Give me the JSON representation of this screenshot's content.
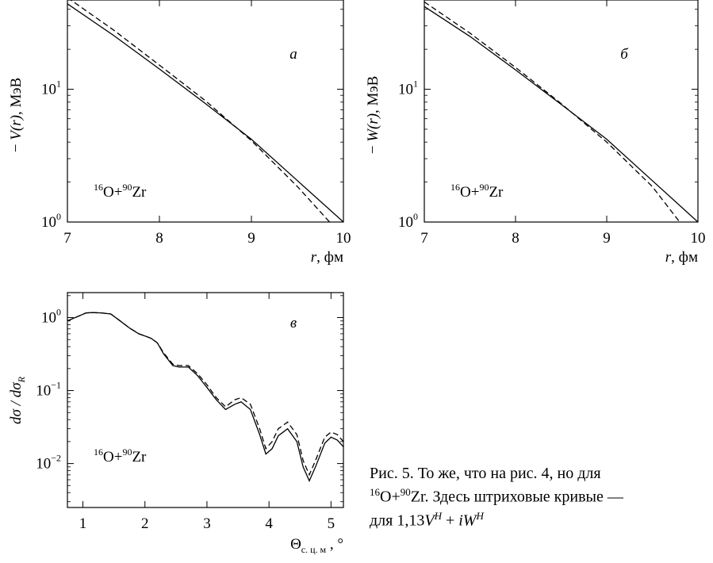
{
  "chart_data": [
    {
      "id": "a",
      "type": "line",
      "panel_label": "а",
      "annotation": {
        "isotope1_mass": "16",
        "isotope1": "O",
        "plus": "+",
        "isotope2_mass": "90",
        "isotope2": "Zr"
      },
      "ylabel": "− V(r), МэВ",
      "ylabel_parts": {
        "minus": "−",
        "symbol": "V",
        "arg": "(r)",
        "unit": ", МэВ"
      },
      "xlabel": "r, фм",
      "xlabel_parts": {
        "symbol": "r",
        "unit": ", фм"
      },
      "scale_y": "log",
      "xlim": [
        7,
        10
      ],
      "ylim": [
        1,
        47
      ],
      "xticks": [
        {
          "v": 7,
          "label": "7"
        },
        {
          "v": 8,
          "label": "8"
        },
        {
          "v": 9,
          "label": "9"
        },
        {
          "v": 10,
          "label": "10"
        }
      ],
      "yticks": [
        {
          "v": 1,
          "base": "10",
          "exp": "0"
        },
        {
          "v": 10,
          "base": "10",
          "exp": "1"
        }
      ],
      "series": [
        {
          "style": "solid",
          "x": [
            7.0,
            7.5,
            8.0,
            8.5,
            9.0,
            9.5,
            10.0
          ],
          "y": [
            44.0,
            25.5,
            14.2,
            7.8,
            4.2,
            2.05,
            1.0
          ]
        },
        {
          "style": "dashed",
          "x": [
            7.0,
            7.5,
            8.0,
            8.5,
            9.0,
            9.5,
            9.85
          ],
          "y": [
            49.0,
            28.0,
            15.2,
            8.2,
            4.1,
            1.85,
            1.0
          ]
        }
      ]
    },
    {
      "id": "b",
      "type": "line",
      "panel_label": "б",
      "annotation": {
        "isotope1_mass": "16",
        "isotope1": "O",
        "plus": "+",
        "isotope2_mass": "90",
        "isotope2": "Zr"
      },
      "ylabel": "− W(r), МэВ",
      "ylabel_parts": {
        "minus": "−",
        "symbol": "W",
        "arg": "(r)",
        "unit": ", МэВ"
      },
      "xlabel": "r, фм",
      "xlabel_parts": {
        "symbol": "r",
        "unit": ", фм"
      },
      "scale_y": "log",
      "xlim": [
        7,
        10
      ],
      "ylim": [
        1,
        47
      ],
      "xticks": [
        {
          "v": 7,
          "label": "7"
        },
        {
          "v": 8,
          "label": "8"
        },
        {
          "v": 9,
          "label": "9"
        },
        {
          "v": 10,
          "label": "10"
        }
      ],
      "yticks": [
        {
          "v": 1,
          "base": "10",
          "exp": "0"
        },
        {
          "v": 10,
          "base": "10",
          "exp": "1"
        }
      ],
      "series": [
        {
          "style": "solid",
          "x": [
            7.0,
            7.5,
            8.0,
            8.5,
            9.0,
            9.5,
            10.0
          ],
          "y": [
            42.0,
            25.0,
            14.0,
            7.7,
            4.2,
            2.05,
            1.0
          ]
        },
        {
          "style": "dashed",
          "x": [
            7.0,
            7.5,
            8.0,
            8.5,
            9.0,
            9.5,
            9.8
          ],
          "y": [
            45.5,
            26.5,
            14.6,
            7.8,
            4.0,
            1.85,
            1.0
          ]
        }
      ]
    },
    {
      "id": "c",
      "type": "line",
      "panel_label": "в",
      "annotation": {
        "isotope1_mass": "16",
        "isotope1": "O",
        "plus": "+",
        "isotope2_mass": "90",
        "isotope2": "Zr"
      },
      "ylabel": "dσ / dσR",
      "ylabel_parts": {
        "num": "dσ / dσ",
        "sub": "R"
      },
      "xlabel": "Θc. ц. м , °",
      "xlabel_parts": {
        "symbol": "Θ",
        "sub": "c. ц. м",
        "unit": " , °"
      },
      "scale_y": "log",
      "xlim": [
        0.75,
        5.2
      ],
      "ylim": [
        0.0025,
        2.2
      ],
      "xticks": [
        {
          "v": 1,
          "label": "1"
        },
        {
          "v": 2,
          "label": "2"
        },
        {
          "v": 3,
          "label": "3"
        },
        {
          "v": 4,
          "label": "4"
        },
        {
          "v": 5,
          "label": "5"
        }
      ],
      "yticks": [
        {
          "v": 0.01,
          "base": "10",
          "exp": "−2"
        },
        {
          "v": 0.1,
          "base": "10",
          "exp": "−1"
        },
        {
          "v": 1,
          "base": "10",
          "exp": "0"
        }
      ],
      "series": [
        {
          "style": "solid",
          "x": [
            0.75,
            0.9,
            1.05,
            1.15,
            1.3,
            1.45,
            1.6,
            1.75,
            1.9,
            2.0,
            2.1,
            2.2,
            2.3,
            2.45,
            2.55,
            2.7,
            2.85,
            3.0,
            3.15,
            3.3,
            3.45,
            3.55,
            3.7,
            3.85,
            3.95,
            4.05,
            4.15,
            4.3,
            4.45,
            4.55,
            4.65,
            4.75,
            4.9,
            5.0,
            5.1,
            5.2
          ],
          "y": [
            0.9,
            1.02,
            1.16,
            1.17,
            1.16,
            1.12,
            0.9,
            0.72,
            0.6,
            0.56,
            0.52,
            0.45,
            0.32,
            0.22,
            0.21,
            0.21,
            0.16,
            0.11,
            0.075,
            0.055,
            0.065,
            0.07,
            0.055,
            0.025,
            0.0135,
            0.016,
            0.024,
            0.03,
            0.02,
            0.009,
            0.0058,
            0.009,
            0.019,
            0.023,
            0.021,
            0.017
          ]
        },
        {
          "style": "dashed",
          "x": [
            0.75,
            0.9,
            1.05,
            1.15,
            1.3,
            1.45,
            1.6,
            1.75,
            1.9,
            2.0,
            2.1,
            2.2,
            2.3,
            2.45,
            2.55,
            2.7,
            2.85,
            3.0,
            3.15,
            3.3,
            3.45,
            3.55,
            3.7,
            3.85,
            3.95,
            4.05,
            4.15,
            4.3,
            4.45,
            4.55,
            4.65,
            4.75,
            4.9,
            5.0,
            5.1,
            5.2
          ],
          "y": [
            0.9,
            1.02,
            1.16,
            1.17,
            1.16,
            1.12,
            0.9,
            0.72,
            0.6,
            0.56,
            0.52,
            0.45,
            0.33,
            0.23,
            0.22,
            0.22,
            0.17,
            0.12,
            0.08,
            0.06,
            0.075,
            0.08,
            0.065,
            0.03,
            0.016,
            0.02,
            0.03,
            0.037,
            0.025,
            0.011,
            0.007,
            0.011,
            0.023,
            0.027,
            0.025,
            0.02
          ]
        }
      ]
    }
  ],
  "caption": {
    "line1": "Рис. 5. То же, что на рис. 4, но для",
    "line2_mass1": "16",
    "line2_el1": "O",
    "line2_plus": "+",
    "line2_mass2": "90",
    "line2_el2": "Zr",
    "line2_rest": ". Здесь штриховые кривые —",
    "line3_prefix": "для 1,13",
    "line3_V": "V",
    "line3_supH1": "H",
    "line3_mid": " + ",
    "line3_iW": "iW",
    "line3_supH2": "H"
  }
}
